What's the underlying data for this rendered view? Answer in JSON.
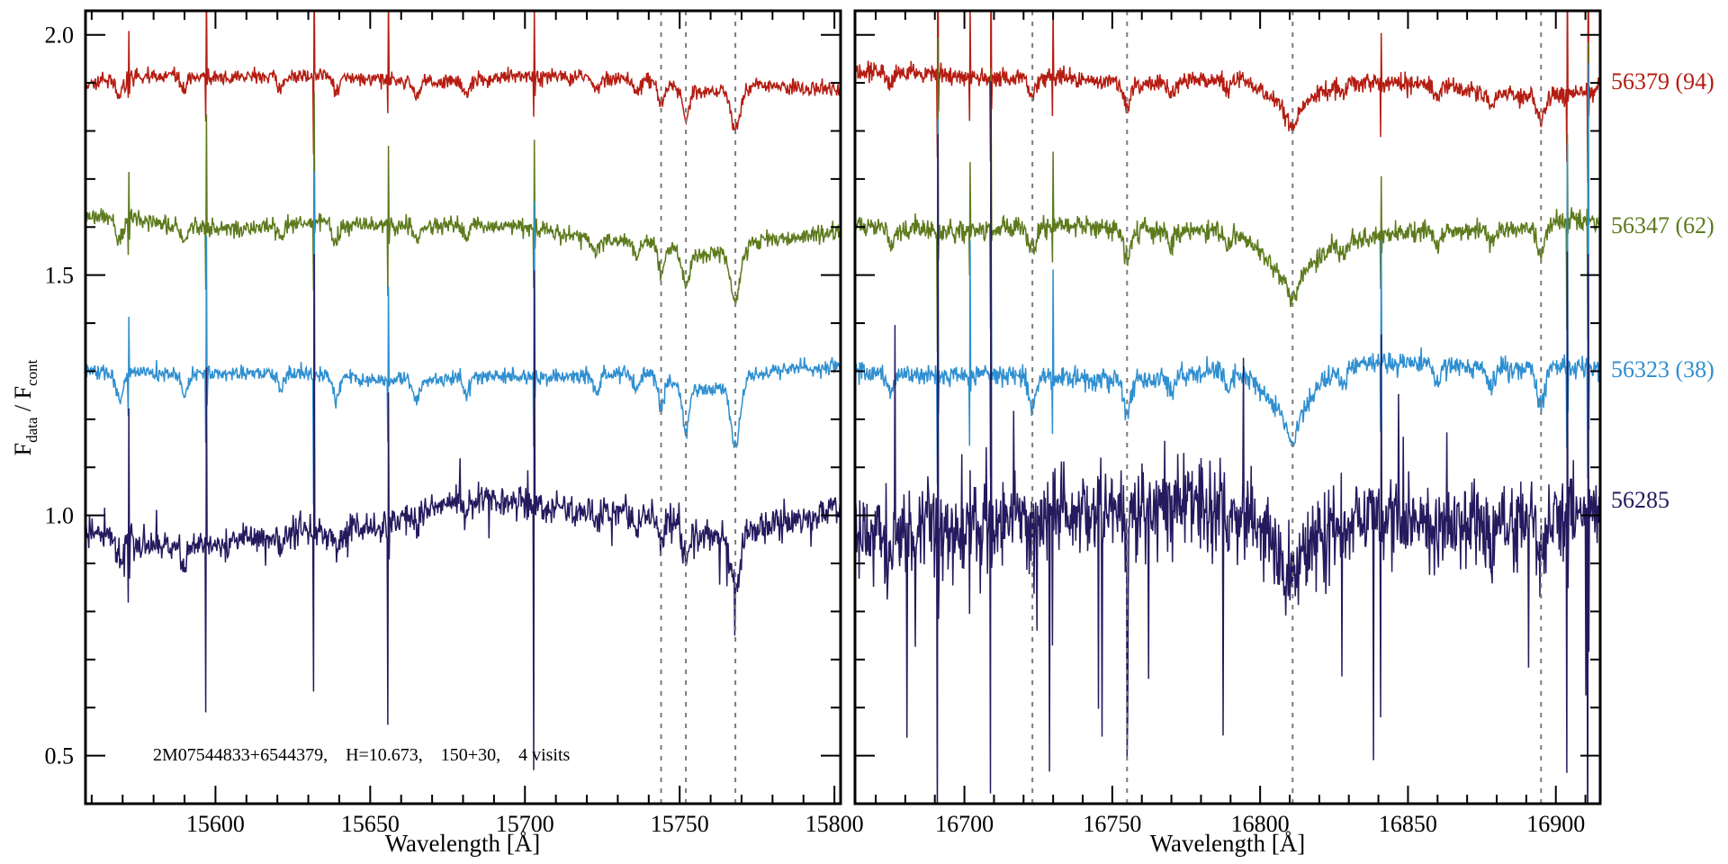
{
  "figure": {
    "background": "#ffffff"
  },
  "chart_data": {
    "type": "line",
    "description": "Continuum-normalized visit spectra of 2M07544833+6544379 in two wavelength windows; four visits vertically offset, labeled by MJD (S/N).",
    "annotation": "2M07544833+6544379,    H=10.673,    150+30,    4 visits",
    "ylabel": {
      "text": "F_data / F_cont",
      "main1": "F",
      "sub1": "data",
      "main2": " / F",
      "sub2": "cont"
    },
    "ylim": [
      0.4,
      2.05
    ],
    "yticks": [
      0.5,
      1.0,
      1.5,
      2.0
    ],
    "ytick_labels": [
      "0.5",
      "1.0",
      "1.5",
      "2.0"
    ],
    "y_minor_step": 0.1,
    "panels": [
      {
        "xlabel": "Wavelength [Å]",
        "xlim": [
          15558,
          15802
        ],
        "xticks": [
          15600,
          15650,
          15700,
          15750,
          15800
        ],
        "x_minor_step": 10,
        "samples": 1150,
        "dashed_lines": [
          15744,
          15752,
          15768
        ],
        "sky_lines": [
          {
            "x": 15572,
            "s": 0.9
          },
          {
            "x": 15597,
            "s": 1.7
          },
          {
            "x": 15632,
            "s": 2.3
          },
          {
            "x": 15656,
            "s": 1.6
          },
          {
            "x": 15703,
            "s": 1.9
          }
        ],
        "absorption_lines": [
          {
            "x": 15569,
            "depth": 0.05,
            "w": 1.6
          },
          {
            "x": 15590,
            "depth": 0.035,
            "w": 1.4
          },
          {
            "x": 15621,
            "depth": 0.03,
            "w": 1.4
          },
          {
            "x": 15639,
            "depth": 0.04,
            "w": 1.6
          },
          {
            "x": 15665,
            "depth": 0.03,
            "w": 1.4
          },
          {
            "x": 15681,
            "depth": 0.03,
            "w": 1.4
          },
          {
            "x": 15723,
            "depth": 0.03,
            "w": 1.5
          },
          {
            "x": 15736,
            "depth": 0.03,
            "w": 1.5
          },
          {
            "x": 15744,
            "depth": 0.05,
            "w": 1.4
          },
          {
            "x": 15752,
            "depth": 0.07,
            "w": 1.5
          },
          {
            "x": 15768,
            "depth": 0.11,
            "w": 2.2
          },
          {
            "x": 15757,
            "depth": 0.04,
            "w": 14
          }
        ]
      },
      {
        "xlabel": "Wavelength [Å]",
        "xlim": [
          16663,
          16915
        ],
        "xticks": [
          16700,
          16750,
          16800,
          16850,
          16900
        ],
        "x_minor_step": 10,
        "samples": 1250,
        "dashed_lines": [
          16723,
          16755,
          16811,
          16895
        ],
        "sky_lines": [
          {
            "x": 16691,
            "s": 3.0
          },
          {
            "x": 16702,
            "s": 1.2
          },
          {
            "x": 16709,
            "s": 2.6
          },
          {
            "x": 16730,
            "s": 1.0
          },
          {
            "x": 16841,
            "s": 1.7
          },
          {
            "x": 16904,
            "s": 2.3
          },
          {
            "x": 16911,
            "s": 2.9
          }
        ],
        "absorption_lines": [
          {
            "x": 16675,
            "depth": 0.035,
            "w": 1.5
          },
          {
            "x": 16723,
            "depth": 0.055,
            "w": 1.6
          },
          {
            "x": 16755,
            "depth": 0.06,
            "w": 1.6
          },
          {
            "x": 16770,
            "depth": 0.03,
            "w": 1.5
          },
          {
            "x": 16789,
            "depth": 0.03,
            "w": 1.5
          },
          {
            "x": 16811,
            "depth": 0.05,
            "w": 2.5
          },
          {
            "x": 16810,
            "depth": 0.075,
            "w": 11
          },
          {
            "x": 16828,
            "depth": 0.03,
            "w": 1.5
          },
          {
            "x": 16860,
            "depth": 0.03,
            "w": 1.5
          },
          {
            "x": 16878,
            "depth": 0.03,
            "w": 1.5
          },
          {
            "x": 16895,
            "depth": 0.06,
            "w": 2.0
          }
        ]
      }
    ],
    "series": [
      {
        "id": "56379",
        "label": "56379 (94)",
        "color": "#b51d12",
        "offset": 1.9,
        "wiggle": [
          0.014,
          0.016
        ],
        "noise": [
          0.008,
          0.01
        ],
        "heavy": [
          0,
          0
        ],
        "spike_up": 0.13,
        "spike_down": 0.07,
        "line_scale": 0.8
      },
      {
        "id": "56347",
        "label": "56347 (62)",
        "color": "#5d7a1d",
        "offset": 1.6,
        "wiggle": [
          0.018,
          0.018
        ],
        "noise": [
          0.009,
          0.011
        ],
        "heavy": [
          0,
          0
        ],
        "spike_up": 0.13,
        "spike_down": 0.09,
        "line_scale": 1.0
      },
      {
        "id": "56323",
        "label": "56323 (38)",
        "color": "#2f8fd0",
        "offset": 1.3,
        "wiggle": [
          0.013,
          0.014
        ],
        "noise": [
          0.008,
          0.011
        ],
        "heavy": [
          0,
          0
        ],
        "spike_up": 0.19,
        "spike_down": 0.11,
        "line_scale": 1.25
      },
      {
        "id": "56285",
        "label": "56285",
        "color": "#241a5e",
        "offset": 0.98,
        "wiggle": [
          0.04,
          0.03
        ],
        "noise": [
          0.016,
          0.045
        ],
        "heavy": [
          0.08,
          0.4
        ],
        "spike_up": 0.3,
        "spike_down": 0.26,
        "line_scale": 1.0
      }
    ]
  }
}
